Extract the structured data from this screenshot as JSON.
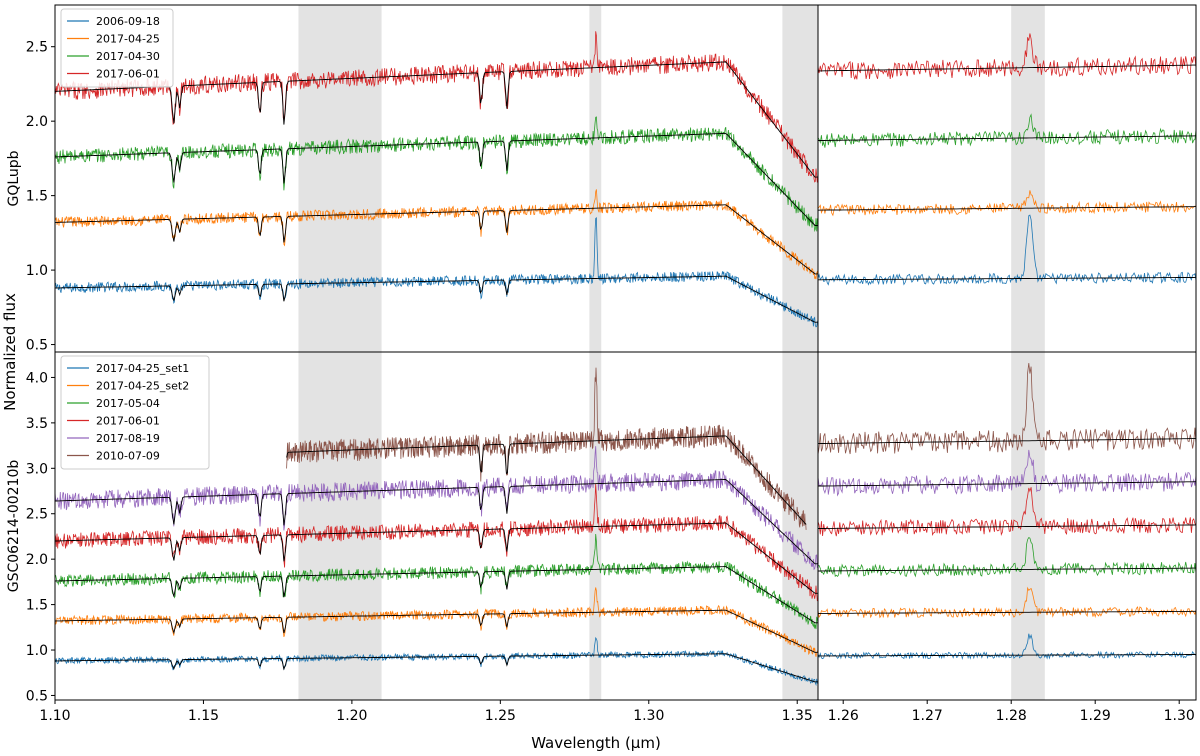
{
  "figure": {
    "xlabel": "Wavelength (µm)",
    "ylabel": "Normalized flux"
  },
  "chart_data": [
    {
      "type": "line",
      "panel": "top-left",
      "ylabel": "GQLupb",
      "xlim": [
        1.1,
        1.357
      ],
      "ylim": [
        0.45,
        2.78
      ],
      "xticks": [
        1.1,
        1.15,
        1.2,
        1.25,
        1.3,
        1.35
      ],
      "xticklabels": [
        "1.10",
        "1.15",
        "1.20",
        "1.25",
        "1.30",
        "1.35"
      ],
      "yticks": [
        0.5,
        1.0,
        1.5,
        2.0,
        2.5
      ],
      "yticklabels": [
        "0.5",
        "1.0",
        "1.5",
        "2.0",
        "2.5"
      ],
      "shaded_regions": [
        [
          1.182,
          1.21
        ],
        [
          1.28,
          1.284
        ],
        [
          1.345,
          1.357
        ]
      ],
      "legend": "top-left",
      "series": [
        {
          "name": "2006-09-18",
          "color": "#1f77b4",
          "offset": 1.0
        },
        {
          "name": "2017-04-25",
          "color": "#ff7f0e",
          "offset": 1.5
        },
        {
          "name": "2017-04-30",
          "color": "#2ca02c",
          "offset": 2.0
        },
        {
          "name": "2017-06-01",
          "color": "#d62728",
          "offset": 2.5
        }
      ]
    },
    {
      "type": "line",
      "panel": "top-right",
      "xlim": [
        1.257,
        1.302
      ],
      "ylim": [
        0.45,
        2.78
      ],
      "shaded_regions": [
        [
          1.28,
          1.284
        ]
      ],
      "series": [
        {
          "name": "2006-09-18",
          "color": "#1f77b4",
          "offset": 1.0
        },
        {
          "name": "2017-04-25",
          "color": "#ff7f0e",
          "offset": 1.5
        },
        {
          "name": "2017-04-30",
          "color": "#2ca02c",
          "offset": 2.0
        },
        {
          "name": "2017-06-01",
          "color": "#d62728",
          "offset": 2.5
        }
      ]
    },
    {
      "type": "line",
      "panel": "bottom-left",
      "ylabel": "GSC06214-00210b",
      "xlim": [
        1.1,
        1.357
      ],
      "ylim": [
        0.45,
        4.28
      ],
      "xticks": [
        1.1,
        1.15,
        1.2,
        1.25,
        1.3,
        1.35
      ],
      "xticklabels": [
        "1.10",
        "1.15",
        "1.20",
        "1.25",
        "1.30",
        "1.35"
      ],
      "yticks": [
        0.5,
        1.0,
        1.5,
        2.0,
        2.5,
        3.0,
        3.5,
        4.0
      ],
      "yticklabels": [
        "0.5",
        "1.0",
        "1.5",
        "2.0",
        "2.5",
        "3.0",
        "3.5",
        "4.0"
      ],
      "shaded_regions": [
        [
          1.182,
          1.21
        ],
        [
          1.28,
          1.284
        ],
        [
          1.345,
          1.357
        ]
      ],
      "legend": "top-left",
      "series": [
        {
          "name": "2017-04-25_set1",
          "color": "#1f77b4",
          "offset": 1.0
        },
        {
          "name": "2017-04-25_set2",
          "color": "#ff7f0e",
          "offset": 1.5
        },
        {
          "name": "2017-05-04",
          "color": "#2ca02c",
          "offset": 2.0
        },
        {
          "name": "2017-06-01",
          "color": "#d62728",
          "offset": 2.5
        },
        {
          "name": "2017-08-19",
          "color": "#9467bd",
          "offset": 3.0
        },
        {
          "name": "2010-07-09",
          "color": "#8c564b",
          "offset": 3.5,
          "x_start": 1.178,
          "x_end": 1.353
        }
      ]
    },
    {
      "type": "line",
      "panel": "bottom-right",
      "xlim": [
        1.257,
        1.302
      ],
      "ylim": [
        0.45,
        4.28
      ],
      "xticks": [
        1.26,
        1.27,
        1.28,
        1.29,
        1.3
      ],
      "xticklabels": [
        "1.26",
        "1.27",
        "1.28",
        "1.29",
        "1.30"
      ],
      "shaded_regions": [
        [
          1.28,
          1.284
        ]
      ],
      "series": [
        {
          "name": "2017-04-25_set1",
          "color": "#1f77b4",
          "offset": 1.0
        },
        {
          "name": "2017-04-25_set2",
          "color": "#ff7f0e",
          "offset": 1.5
        },
        {
          "name": "2017-05-04",
          "color": "#2ca02c",
          "offset": 2.0
        },
        {
          "name": "2017-06-01",
          "color": "#d62728",
          "offset": 2.5
        },
        {
          "name": "2017-08-19",
          "color": "#9467bd",
          "offset": 3.0
        },
        {
          "name": "2010-07-09",
          "color": "#8c564b",
          "offset": 3.5
        }
      ]
    }
  ]
}
